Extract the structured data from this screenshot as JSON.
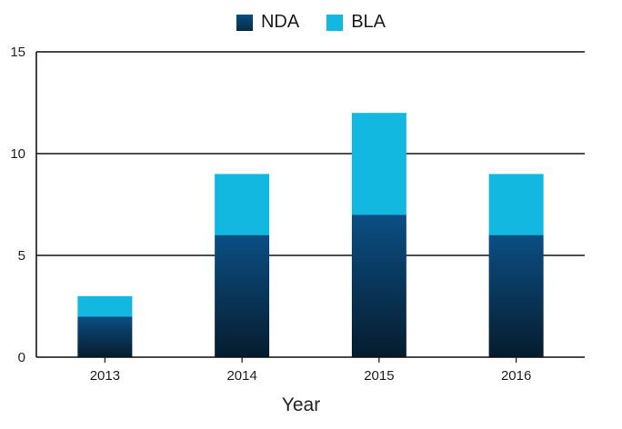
{
  "chart_data": {
    "type": "bar",
    "stacked": true,
    "categories": [
      "2013",
      "2014",
      "2015",
      "2016"
    ],
    "series": [
      {
        "name": "NDA",
        "values": [
          2,
          6,
          7,
          6
        ],
        "color": "#0a4a78"
      },
      {
        "name": "BLA",
        "values": [
          1,
          3,
          5,
          3
        ],
        "color": "#12b8e0"
      }
    ],
    "xlabel": "Year",
    "ylabel": "",
    "ylim": [
      0,
      15
    ],
    "yticks": [
      0,
      5,
      10,
      15
    ],
    "grid": true,
    "legend_position": "top-center"
  }
}
